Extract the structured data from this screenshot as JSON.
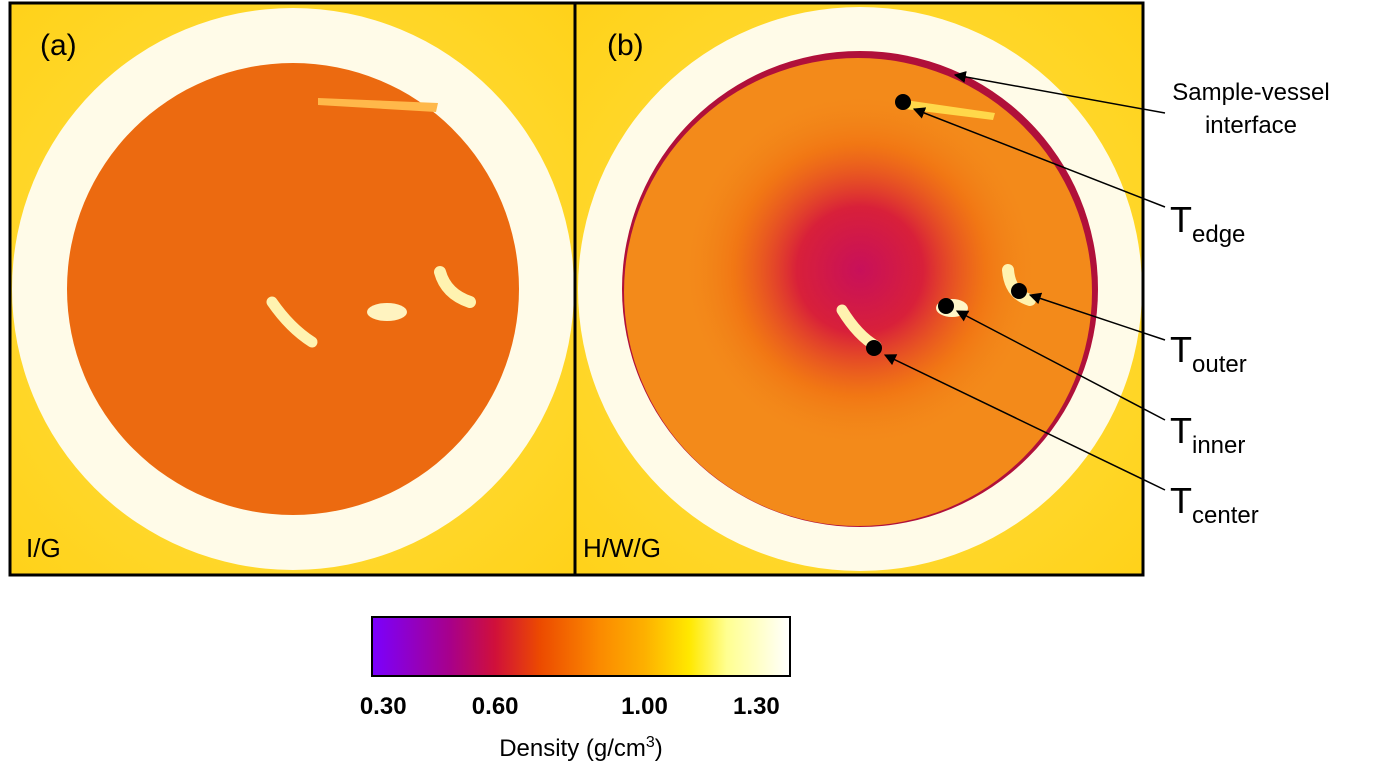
{
  "figure": {
    "panels": [
      {
        "tag": "(a)",
        "label": "I/G"
      },
      {
        "tag": "(b)",
        "label": "H/W/G"
      }
    ],
    "annotations": {
      "interface": {
        "line1": "Sample-vessel",
        "line2": "interface"
      },
      "probes": [
        {
          "main": "T",
          "sub": "edge"
        },
        {
          "main": "T",
          "sub": "outer"
        },
        {
          "main": "T",
          "sub": "inner"
        },
        {
          "main": "T",
          "sub": "center"
        }
      ]
    },
    "colorbar": {
      "lim": [
        0.27,
        1.39
      ],
      "ticks": [
        {
          "value": 0.3,
          "label": "0.30"
        },
        {
          "value": 0.6,
          "label": "0.60"
        },
        {
          "value": 1.0,
          "label": "1.00"
        },
        {
          "value": 1.3,
          "label": "1.30"
        }
      ],
      "label": {
        "text": "Density (g/cm",
        "sup": "3",
        "tail": ")"
      }
    }
  }
}
